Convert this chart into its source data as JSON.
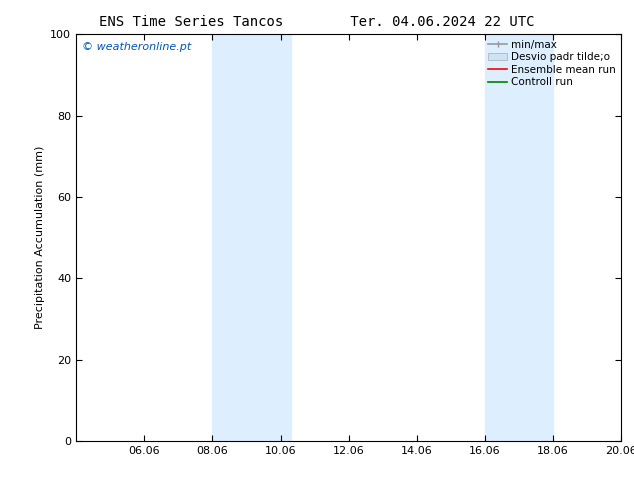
{
  "title_left": "ENS Time Series Tancos",
  "title_right": "Ter. 04.06.2024 22 UTC",
  "ylabel": "Precipitation Accumulation (mm)",
  "ylim": [
    0,
    100
  ],
  "yticks": [
    0,
    20,
    40,
    60,
    80,
    100
  ],
  "xlim": [
    4.0,
    20.0
  ],
  "xtick_labels": [
    "06.06",
    "08.06",
    "10.06",
    "12.06",
    "14.06",
    "16.06",
    "18.06",
    "20.06"
  ],
  "xtick_positions": [
    6,
    8,
    10,
    12,
    14,
    16,
    18,
    20
  ],
  "shaded_bands": [
    {
      "x_start": 8.0,
      "x_end": 9.3
    },
    {
      "x_start": 9.3,
      "x_end": 10.3
    },
    {
      "x_start": 16.0,
      "x_end": 17.0
    },
    {
      "x_start": 17.0,
      "x_end": 18.0
    }
  ],
  "shade_color": "#ddeeff",
  "watermark_text": "© weatheronline.pt",
  "watermark_color": "#0055bb",
  "bg_color": "white",
  "title_fontsize": 10,
  "axis_label_fontsize": 8,
  "tick_fontsize": 8,
  "legend_fontsize": 7.5,
  "watermark_fontsize": 8
}
